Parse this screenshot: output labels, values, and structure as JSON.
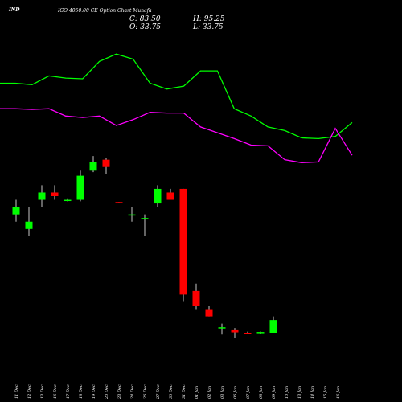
{
  "header": {
    "symbol": "IND",
    "subtitle": "IGO 4050.00  CE Option  Chart Munafa",
    "close": "C: 83.50",
    "high": "H: 95.25",
    "open": "O: 33.75",
    "low": "L: 33.75"
  },
  "chart_data": {
    "type": "candlestick",
    "categories": [
      "11 Dec",
      "12 Dec",
      "13 Dec",
      "16 Dec",
      "17 Dec",
      "18 Dec",
      "19 Dec",
      "20 Dec",
      "23 Dec",
      "24 Dec",
      "26 Dec",
      "27 Dec",
      "30 Dec",
      "31 Dec",
      "01 Jan",
      "02 Jan",
      "03 Jan",
      "06 Jan",
      "07 Jan",
      "08 Jan",
      "09 Jan",
      "10 Jan",
      "13 Jan",
      "14 Jan",
      "15 Jan",
      "16 Jan"
    ],
    "label_slots": [
      1,
      2,
      3,
      4,
      5,
      6,
      7,
      8,
      9,
      10,
      11,
      12,
      13,
      14,
      15,
      16,
      17,
      18,
      19,
      20,
      21,
      22,
      23,
      24,
      25,
      26
    ],
    "tick_labels": [
      "11 Dec",
      "12 Dec",
      "13 Dec",
      "16 Dec",
      "17 Dec",
      "18 Dec",
      "19 Dec",
      "20 Dec",
      "23 Dec",
      "24 Dec",
      "26 Dec",
      "27 Dec",
      "30 Dec",
      "31 Dec",
      "01 Jan",
      "02 Jan",
      "03 Jan",
      "06 Jan",
      "07 Jan",
      "08 Jan",
      "09 Jan",
      "10 Jan",
      "13 Jan",
      "14 Jan",
      "15 Jan",
      "16 Jan"
    ],
    "candles": [
      {
        "slot": 1,
        "o": 250,
        "h": 252,
        "l": 249,
        "c": 251
      },
      {
        "slot": 2,
        "o": 248,
        "h": 251,
        "l": 247,
        "c": 249
      },
      {
        "slot": 3,
        "o": 252,
        "h": 254,
        "l": 251,
        "c": 253
      },
      {
        "slot": 4,
        "o": 253,
        "h": 254,
        "l": 252,
        "c": 252.5
      },
      {
        "slot": 5,
        "o": 252,
        "h": 252.2,
        "l": 251.8,
        "c": 252
      },
      {
        "slot": 6,
        "o": 252,
        "h": 256,
        "l": 251.8,
        "c": 255.3
      },
      {
        "slot": 7,
        "o": 256,
        "h": 258,
        "l": 255.8,
        "c": 257.2
      },
      {
        "slot": 8,
        "o": 257.5,
        "h": 257.8,
        "l": 255.5,
        "c": 256.5
      },
      {
        "slot": 9,
        "o": 251.7,
        "h": 251.7,
        "l": 251.6,
        "c": 251.6
      },
      {
        "slot": 10,
        "o": 250,
        "h": 251,
        "l": 249,
        "c": 250
      },
      {
        "slot": 11,
        "o": 249.5,
        "h": 250,
        "l": 247,
        "c": 249.5
      },
      {
        "slot": 12,
        "o": 251.5,
        "h": 254,
        "l": 251,
        "c": 253.5
      },
      {
        "slot": 13,
        "o": 253,
        "h": 253.5,
        "l": 252,
        "c": 252
      },
      {
        "slot": 14,
        "o": 253.5,
        "h": 253.5,
        "l": 238,
        "c": 239
      },
      {
        "slot": 15,
        "o": 239.5,
        "h": 240.5,
        "l": 237,
        "c": 237.5
      },
      {
        "slot": 16,
        "o": 237,
        "h": 237.5,
        "l": 236,
        "c": 236
      },
      {
        "slot": 17,
        "o": 234.5,
        "h": 235,
        "l": 233.5,
        "c": 234.5
      },
      {
        "slot": 18,
        "o": 234.2,
        "h": 234.4,
        "l": 233,
        "c": 233.8
      },
      {
        "slot": 19,
        "o": 233.75,
        "h": 233.9,
        "l": 233.6,
        "c": 233.7
      },
      {
        "slot": 20,
        "o": 233.75,
        "h": 233.9,
        "l": 233.6,
        "c": 233.85
      },
      {
        "slot": 21,
        "o": 233.75,
        "h": 236,
        "l": 233.75,
        "c": 235.5
      }
    ],
    "overlays": [
      {
        "name": "upper",
        "color": "#00ff00",
        "values": [
          268,
          268,
          267.8,
          269,
          268.7,
          268.6,
          271,
          272,
          271.3,
          268,
          267.2,
          267.6,
          269.7,
          269.7,
          264.5,
          263.5,
          262,
          261.5,
          260.5,
          260.4,
          260.7,
          262.6
        ]
      },
      {
        "name": "lower",
        "color": "#ff00ff",
        "values": [
          264.5,
          264.5,
          264.4,
          264.5,
          263.5,
          263.3,
          263.5,
          262.2,
          263,
          264,
          263.9,
          263.9,
          262,
          261.2,
          260.4,
          259.5,
          259.4,
          257.5,
          257.1,
          257.2,
          261.8,
          258.1
        ]
      }
    ],
    "colors": {
      "up": "#00ff00",
      "down": "#ff0000",
      "wick": "#c8c8c8",
      "label": "#ffffff",
      "background": "#000000"
    },
    "ylim": [
      230,
      275
    ]
  }
}
